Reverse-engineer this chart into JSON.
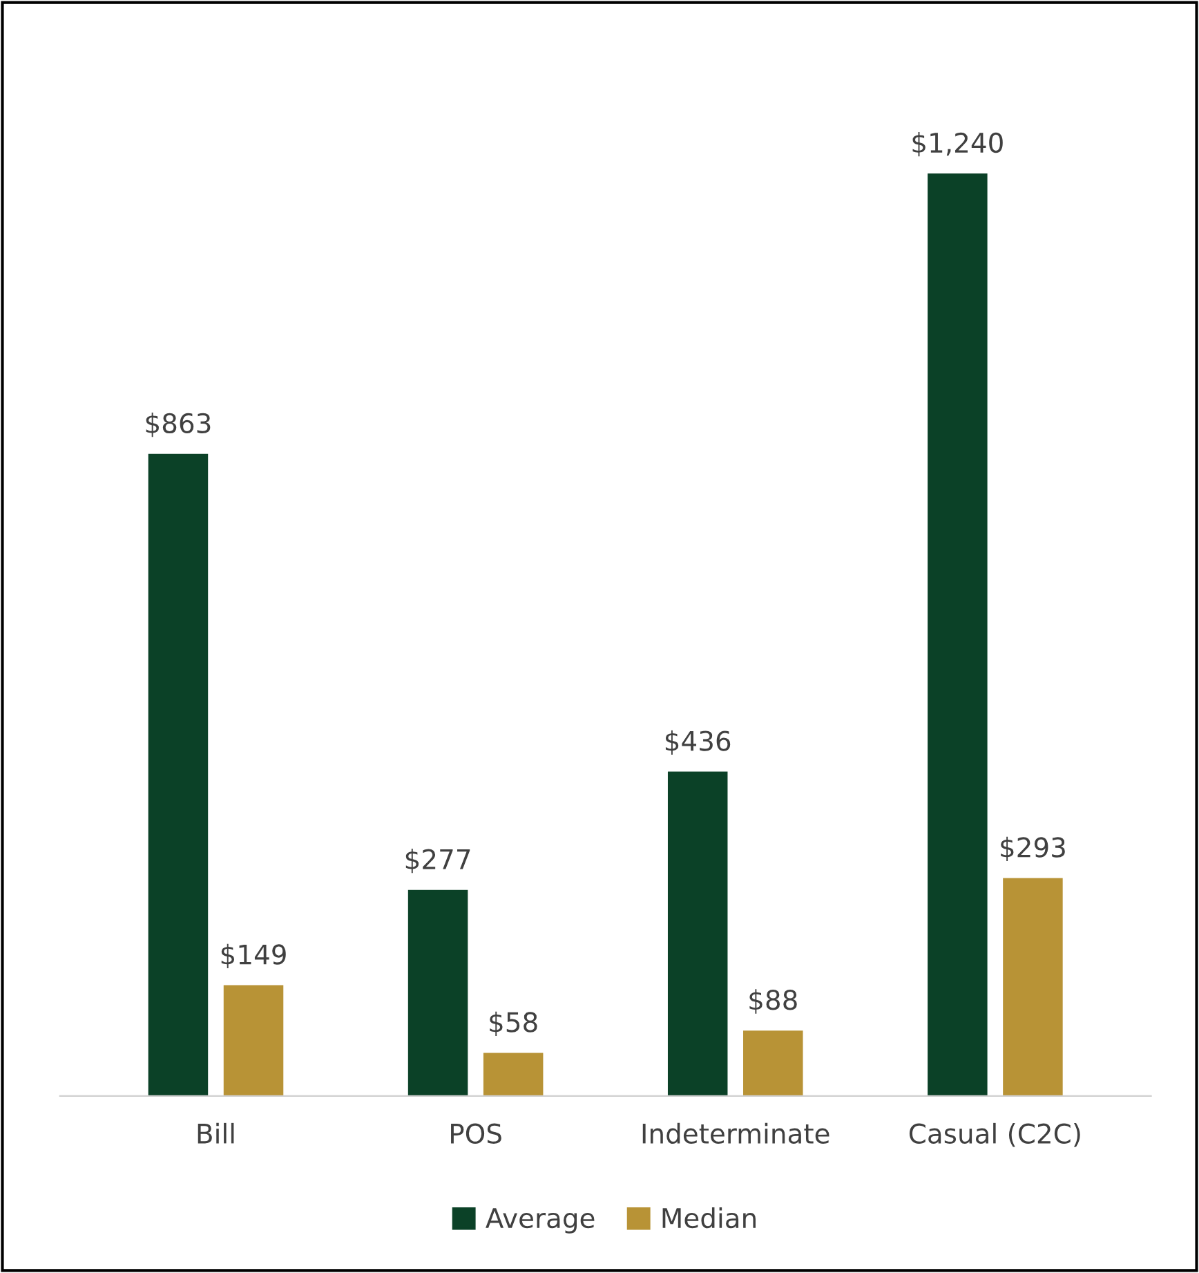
{
  "chart_data": {
    "type": "bar",
    "categories": [
      "Bill",
      "POS",
      "Indeterminate",
      "Casual (C2C)"
    ],
    "series": [
      {
        "name": "Average",
        "color": "#0b4127",
        "values": [
          863,
          277,
          436,
          1240
        ],
        "value_labels": [
          "$863",
          "$277",
          "$436",
          "$1,240"
        ]
      },
      {
        "name": "Median",
        "color": "#b89336",
        "values": [
          149,
          58,
          88,
          293
        ],
        "value_labels": [
          "$149",
          "$58",
          "$88",
          "$293"
        ]
      }
    ],
    "legend": "bottom",
    "grid": false
  }
}
